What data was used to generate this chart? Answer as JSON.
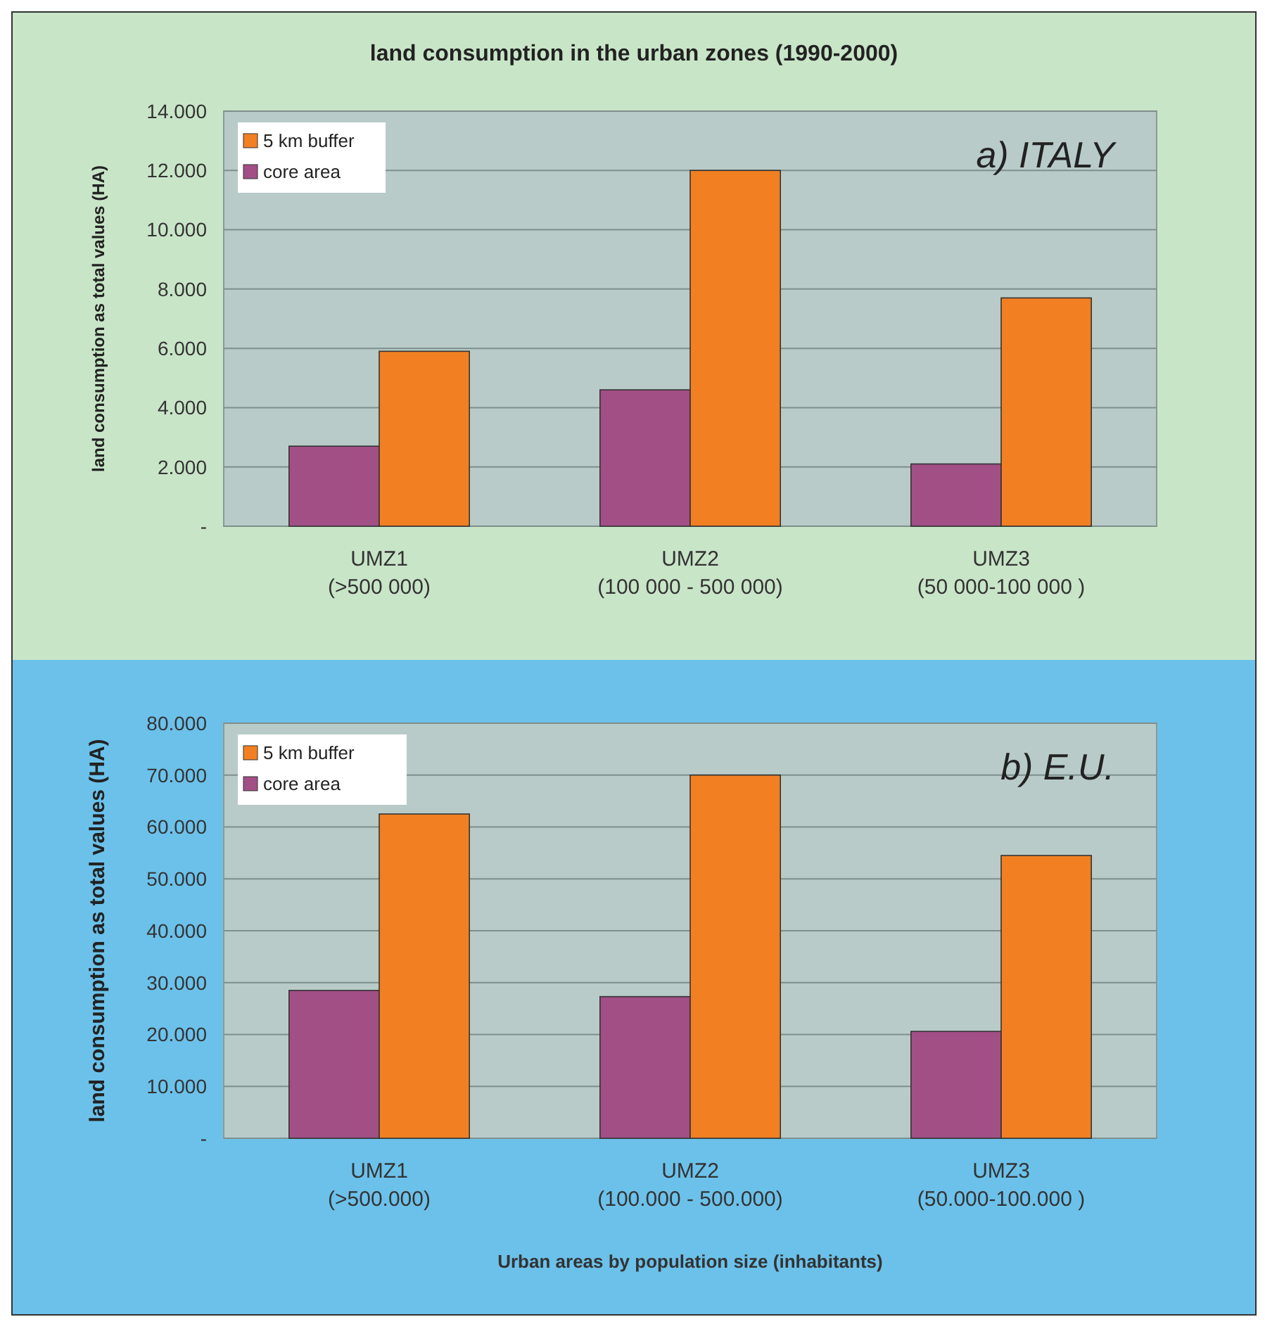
{
  "chart_data": [
    {
      "type": "bar",
      "title": "land consumption in the urban zones (1990-2000)",
      "ylabel": "land consumption as total values (HA)",
      "annotations": [
        "a) ITALY"
      ],
      "categories": [
        "UMZ1\n(>500 000)",
        "UMZ2\n(100 000 - 500 000)",
        "UMZ3\n(50 000-100 000 )"
      ],
      "series": [
        {
          "name": "core area",
          "color": "#a24f86",
          "values": [
            2700,
            4600,
            2100
          ]
        },
        {
          "name": "5 km buffer",
          "color": "#f28022",
          "values": [
            5900,
            12000,
            7700
          ]
        }
      ],
      "ylim": [
        0,
        14000
      ],
      "yticks": [
        {
          "value": 0,
          "label": "-"
        },
        {
          "value": 2000,
          "label": "2.000"
        },
        {
          "value": 4000,
          "label": "4.000"
        },
        {
          "value": 6000,
          "label": "6.000"
        },
        {
          "value": 8000,
          "label": "8.000"
        },
        {
          "value": 10000,
          "label": "10.000"
        },
        {
          "value": 12000,
          "label": "12.000"
        },
        {
          "value": 14000,
          "label": "14.000"
        }
      ],
      "grid": "y",
      "legend": "top left"
    },
    {
      "type": "bar",
      "ylabel": "land consumption as total values (HA)",
      "xlabel": "Urban areas by population size (inhabitants)",
      "annotations": [
        "b) E.U."
      ],
      "categories": [
        "UMZ1\n(>500.000)",
        "UMZ2\n(100.000 - 500.000)",
        "UMZ3\n(50.000-100.000 )"
      ],
      "series": [
        {
          "name": "core area",
          "color": "#a24f86",
          "values": [
            28500,
            27300,
            20600
          ]
        },
        {
          "name": "5 km buffer",
          "color": "#f28022",
          "values": [
            62500,
            70000,
            54500
          ]
        }
      ],
      "ylim": [
        0,
        80000
      ],
      "yticks": [
        {
          "value": 0,
          "label": "-"
        },
        {
          "value": 10000,
          "label": "10.000"
        },
        {
          "value": 20000,
          "label": "20.000"
        },
        {
          "value": 30000,
          "label": "30.000"
        },
        {
          "value": 40000,
          "label": "40.000"
        },
        {
          "value": 50000,
          "label": "50.000"
        },
        {
          "value": 60000,
          "label": "60.000"
        },
        {
          "value": 70000,
          "label": "70.000"
        },
        {
          "value": 80000,
          "label": "80.000"
        }
      ],
      "grid": "y",
      "legend": "top left"
    }
  ]
}
